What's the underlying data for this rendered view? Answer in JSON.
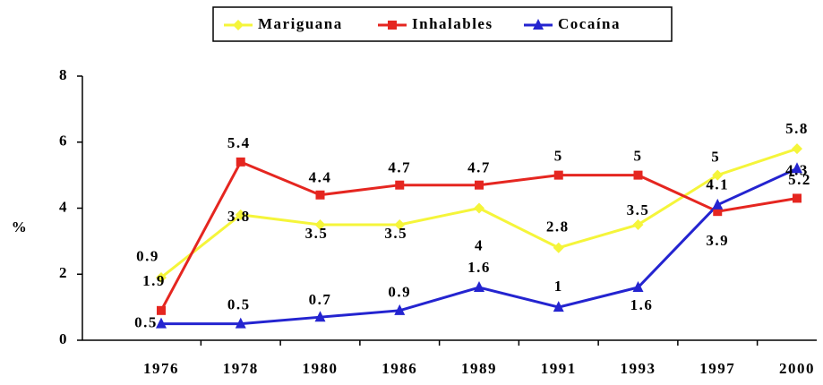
{
  "chart_data": {
    "type": "line",
    "categories": [
      "1976",
      "1978",
      "1980",
      "1986",
      "1989",
      "1991",
      "1993",
      "1997",
      "2000"
    ],
    "series": [
      {
        "name": "Mariguana",
        "color": "#f5f53a",
        "marker": "diamond",
        "values": [
          1.9,
          3.8,
          3.5,
          3.5,
          4,
          2.8,
          3.5,
          5,
          5.8
        ]
      },
      {
        "name": "Inhalables",
        "color": "#e52620",
        "marker": "square",
        "values": [
          0.9,
          5.4,
          4.4,
          4.7,
          4.7,
          5,
          5,
          3.9,
          4.3
        ]
      },
      {
        "name": "Cocaína",
        "color": "#2424d0",
        "marker": "triangle",
        "values": [
          0.5,
          0.5,
          0.7,
          0.9,
          1.6,
          1,
          1.6,
          4.1,
          5.2
        ]
      }
    ],
    "ylabel": "%",
    "ylim": [
      0,
      8
    ],
    "yticks": [
      0,
      2,
      4,
      6,
      8
    ],
    "legend": "top"
  }
}
